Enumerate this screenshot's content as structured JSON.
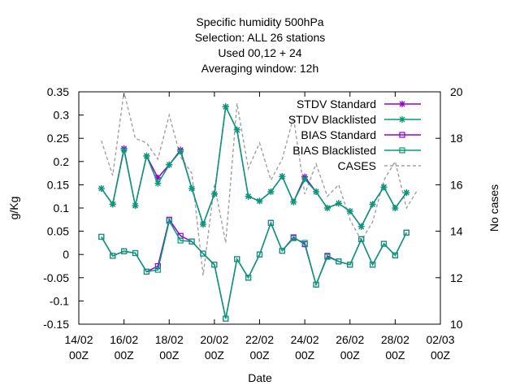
{
  "chart_data": {
    "type": "line",
    "title_lines": [
      "Specific humidity 500hPa",
      "Selection: ALL     26 stations",
      "Used  00,12  + 24",
      "Averaging window: 12h"
    ],
    "xlabel": "Date",
    "ylabel": "g/Kg",
    "y2label": "No cases",
    "xlim": [
      0,
      32
    ],
    "ylim": [
      -0.15,
      0.35
    ],
    "y2lim": [
      10,
      20
    ],
    "x_ticks": [
      {
        "x": 0,
        "line1": "14/02",
        "line2": "00Z"
      },
      {
        "x": 4,
        "line1": "16/02",
        "line2": "00Z"
      },
      {
        "x": 8,
        "line1": "18/02",
        "line2": "00Z"
      },
      {
        "x": 12,
        "line1": "20/02",
        "line2": "00Z"
      },
      {
        "x": 16,
        "line1": "22/02",
        "line2": "00Z"
      },
      {
        "x": 20,
        "line1": "24/02",
        "line2": "00Z"
      },
      {
        "x": 24,
        "line1": "26/02",
        "line2": "00Z"
      },
      {
        "x": 28,
        "line1": "28/02",
        "line2": "00Z"
      },
      {
        "x": 32,
        "line1": "02/03",
        "line2": "00Z"
      }
    ],
    "y_ticks": [
      "0.35",
      "0.3",
      "0.25",
      "0.2",
      "0.15",
      "0.1",
      "0.05",
      "0",
      "-0.05",
      "-0.1",
      "-0.15"
    ],
    "y_tick_values": [
      0.35,
      0.3,
      0.25,
      0.2,
      0.15,
      0.1,
      0.05,
      0,
      -0.05,
      -0.1,
      -0.15
    ],
    "y2_ticks": [
      "20",
      "18",
      "16",
      "14",
      "12",
      "10"
    ],
    "y2_tick_values": [
      20,
      18,
      16,
      14,
      12,
      10
    ],
    "x": [
      2,
      3,
      4,
      5,
      6,
      7,
      8,
      9,
      10,
      11,
      12,
      13,
      14,
      15,
      16,
      17,
      18,
      19,
      20,
      21,
      22,
      23,
      24,
      25,
      26,
      27,
      28,
      29,
      30
    ],
    "series": [
      {
        "name": "STDV Standard",
        "axis": "y",
        "color": "#9400d3",
        "marker": "star",
        "dash": false,
        "values": [
          0.142,
          0.108,
          0.228,
          0.105,
          0.212,
          0.165,
          0.193,
          0.225,
          0.142,
          0.065,
          0.13,
          0.318,
          0.268,
          0.125,
          0.115,
          0.135,
          0.168,
          0.113,
          0.167,
          0.135,
          0.1,
          0.11,
          0.093,
          0.06,
          0.108,
          0.145,
          0.1,
          0.133,
          null
        ]
      },
      {
        "name": "STDV Blacklisted",
        "axis": "y",
        "color": "#009e73",
        "marker": "star",
        "dash": false,
        "values": [
          0.142,
          0.108,
          0.225,
          0.105,
          0.212,
          0.153,
          0.193,
          0.222,
          0.142,
          0.065,
          0.13,
          0.318,
          0.268,
          0.125,
          0.115,
          0.135,
          0.168,
          0.113,
          0.162,
          0.135,
          0.1,
          0.11,
          0.093,
          0.06,
          0.108,
          0.145,
          0.1,
          0.133,
          null
        ]
      },
      {
        "name": "BIAS Standard",
        "axis": "y",
        "color": "#9400d3",
        "marker": "square",
        "dash": false,
        "values": [
          0.038,
          -0.003,
          0.007,
          0.003,
          -0.037,
          -0.025,
          0.075,
          0.04,
          0.028,
          0.002,
          -0.022,
          -0.138,
          -0.01,
          -0.05,
          0.0,
          0.068,
          0.008,
          0.037,
          0.022,
          -0.065,
          -0.003,
          -0.015,
          -0.022,
          0.033,
          -0.022,
          0.023,
          -0.002,
          0.047,
          null
        ]
      },
      {
        "name": "BIAS Blacklisted",
        "axis": "y",
        "color": "#009e73",
        "marker": "square",
        "dash": false,
        "values": [
          0.038,
          -0.003,
          0.007,
          0.003,
          -0.037,
          -0.033,
          0.072,
          0.03,
          0.028,
          0.002,
          -0.022,
          -0.138,
          -0.01,
          -0.05,
          0.0,
          0.068,
          0.008,
          0.035,
          0.025,
          -0.065,
          -0.005,
          -0.015,
          -0.022,
          0.033,
          -0.022,
          0.023,
          -0.002,
          0.047,
          null
        ]
      },
      {
        "name": "CASES",
        "axis": "y2",
        "color": "#a0a0a4",
        "marker": "none",
        "dash": true,
        "values": [
          17.9,
          16.4,
          20.0,
          18.0,
          17.8,
          17.1,
          19.0,
          17.2,
          16.5,
          12.1,
          16.0,
          13.5,
          19.5,
          16.7,
          17.8,
          16.2,
          17.1,
          18.9,
          15.6,
          16.9,
          15.5,
          16.0,
          14.5,
          13.6,
          14.4,
          16.2,
          17.0,
          15.0,
          15.8
        ]
      }
    ],
    "legend_position": "top-right",
    "grid": false
  }
}
